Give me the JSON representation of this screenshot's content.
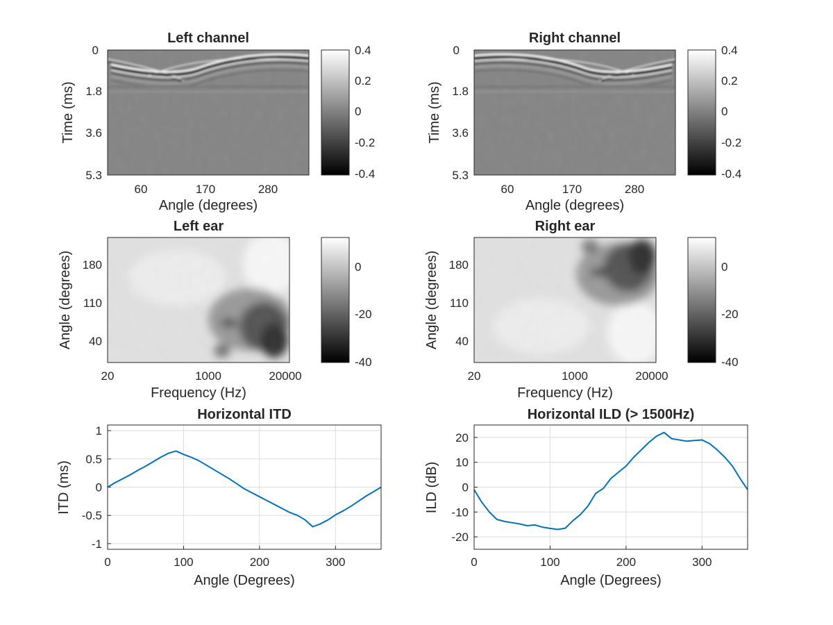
{
  "chart_data": [
    {
      "id": "left-channel",
      "type": "heatmap",
      "title": "Left channel",
      "xlabel": "Angle (degrees)",
      "ylabel": "Time (ms)",
      "xticks": [
        "60",
        "170",
        "280"
      ],
      "yticks": [
        "0",
        "1.8",
        "3.6",
        "5.3"
      ],
      "xlim": [
        0,
        360
      ],
      "ylim": [
        0,
        5.3
      ],
      "colorbar": {
        "ticks": [
          "0.4",
          "0.2",
          "0",
          "-0.2",
          "-0.4"
        ],
        "range": [
          -0.4,
          0.4
        ]
      },
      "colormap": "gray",
      "arrival_time_ms": [
        {
          "angle": 0,
          "time": 0.55
        },
        {
          "angle": 60,
          "time": 0.8
        },
        {
          "angle": 90,
          "time": 0.95
        },
        {
          "angle": 180,
          "time": 0.75
        },
        {
          "angle": 270,
          "time": 0.4
        },
        {
          "angle": 360,
          "time": 0.55
        }
      ]
    },
    {
      "id": "right-channel",
      "type": "heatmap",
      "title": "Right channel",
      "xlabel": "Angle (degrees)",
      "ylabel": "Time (ms)",
      "xticks": [
        "60",
        "170",
        "280"
      ],
      "yticks": [
        "0",
        "1.8",
        "3.6",
        "5.3"
      ],
      "xlim": [
        0,
        360
      ],
      "ylim": [
        0,
        5.3
      ],
      "colorbar": {
        "ticks": [
          "0.4",
          "0.2",
          "0",
          "-0.2",
          "-0.4"
        ],
        "range": [
          -0.4,
          0.4
        ]
      },
      "colormap": "gray",
      "arrival_time_ms": [
        {
          "angle": 0,
          "time": 0.55
        },
        {
          "angle": 90,
          "time": 0.4
        },
        {
          "angle": 180,
          "time": 0.75
        },
        {
          "angle": 270,
          "time": 0.95
        },
        {
          "angle": 300,
          "time": 0.8
        },
        {
          "angle": 360,
          "time": 0.55
        }
      ]
    },
    {
      "id": "left-ear",
      "type": "heatmap",
      "title": "Left ear",
      "xlabel": "Frequency (Hz)",
      "ylabel": "Angle (degrees)",
      "xticks": [
        "20",
        "1000",
        "20000"
      ],
      "yticks": [
        "180",
        "110",
        "40"
      ],
      "xlim": [
        20,
        20000
      ],
      "ylim": [
        0,
        250
      ],
      "xscale": "log",
      "colorbar": {
        "ticks": [
          "0",
          "-20",
          "-40"
        ],
        "range": [
          -40,
          10
        ]
      },
      "colormap": "gray",
      "notch_center": {
        "freq": 8000,
        "angle": 60
      }
    },
    {
      "id": "right-ear",
      "type": "heatmap",
      "title": "Right ear",
      "xlabel": "Frequency (Hz)",
      "ylabel": "Angle (degrees)",
      "xticks": [
        "20",
        "1000",
        "20000"
      ],
      "yticks": [
        "180",
        "110",
        "40"
      ],
      "xlim": [
        20,
        20000
      ],
      "ylim": [
        0,
        250
      ],
      "xscale": "log",
      "colorbar": {
        "ticks": [
          "0",
          "-20",
          "-40"
        ],
        "range": [
          -40,
          10
        ]
      },
      "colormap": "gray",
      "notch_center": {
        "freq": 8000,
        "angle": 180
      }
    },
    {
      "id": "itd",
      "type": "line",
      "title": "Horizontal ITD",
      "xlabel": "Angle (Degrees)",
      "ylabel": "ITD (ms)",
      "xlim": [
        0,
        360
      ],
      "ylim": [
        -1.1,
        1.1
      ],
      "xticks": [
        0,
        100,
        200,
        300
      ],
      "yticks": [
        1,
        0.5,
        0,
        -0.5,
        -1
      ],
      "ytick_labels": [
        "1",
        "0.5",
        "0",
        "-0.5",
        "-1"
      ],
      "grid": true,
      "color": "#0072BD",
      "x": [
        0,
        10,
        20,
        30,
        40,
        50,
        60,
        70,
        80,
        90,
        100,
        110,
        120,
        130,
        140,
        150,
        160,
        170,
        180,
        190,
        200,
        210,
        220,
        230,
        240,
        250,
        260,
        270,
        280,
        290,
        300,
        310,
        320,
        330,
        340,
        350,
        360
      ],
      "y": [
        0,
        0.08,
        0.15,
        0.22,
        0.3,
        0.37,
        0.45,
        0.53,
        0.6,
        0.64,
        0.58,
        0.53,
        0.47,
        0.39,
        0.31,
        0.23,
        0.15,
        0.06,
        -0.03,
        -0.1,
        -0.17,
        -0.24,
        -0.31,
        -0.38,
        -0.45,
        -0.5,
        -0.58,
        -0.7,
        -0.65,
        -0.58,
        -0.49,
        -0.42,
        -0.34,
        -0.25,
        -0.16,
        -0.08,
        0
      ]
    },
    {
      "id": "ild",
      "type": "line",
      "title": "Horizontal ILD (> 1500Hz)",
      "xlabel": "Angle (Degrees)",
      "ylabel": "ILD (dB)",
      "xlim": [
        0,
        360
      ],
      "ylim": [
        -25,
        25
      ],
      "xticks": [
        0,
        100,
        200,
        300
      ],
      "yticks": [
        20,
        10,
        0,
        -10,
        -20
      ],
      "ytick_labels": [
        "20",
        "10",
        "0",
        "-10",
        "-20"
      ],
      "grid": true,
      "color": "#0072BD",
      "x": [
        0,
        10,
        20,
        30,
        40,
        50,
        60,
        70,
        80,
        90,
        100,
        110,
        120,
        130,
        140,
        150,
        160,
        170,
        180,
        190,
        200,
        210,
        220,
        230,
        240,
        250,
        260,
        270,
        280,
        290,
        300,
        310,
        320,
        330,
        340,
        350,
        360
      ],
      "y": [
        -1,
        -6,
        -10,
        -13,
        -13.8,
        -14.3,
        -14.8,
        -15.5,
        -15.2,
        -16.1,
        -16.6,
        -17,
        -16.5,
        -13.5,
        -11,
        -7.5,
        -2.5,
        -0.5,
        3.5,
        6,
        8.5,
        12,
        15,
        18,
        20.5,
        22,
        19.5,
        19,
        18.5,
        18.8,
        19,
        17.5,
        15,
        12,
        8.5,
        3.5,
        -1
      ]
    }
  ]
}
